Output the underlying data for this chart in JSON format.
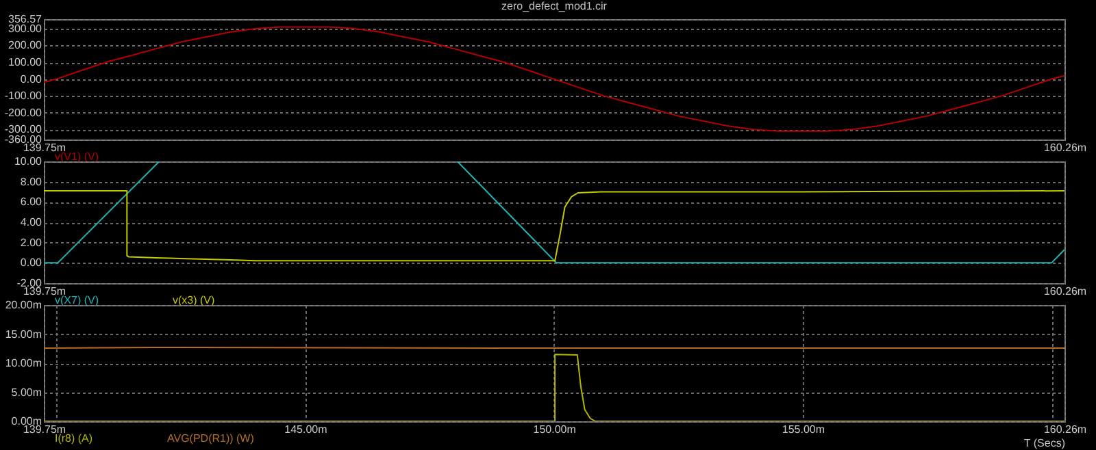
{
  "chart_data": [
    {
      "type": "line",
      "title": "zero_defect_mod1.cir",
      "legend": "bottom left",
      "grid": true,
      "xlim": [
        139.75,
        160.26
      ],
      "xticks": [
        {
          "value": 139.75,
          "label": "139.75m"
        },
        {
          "value": 160.26,
          "label": "160.26m"
        }
      ],
      "ylim": [
        -360,
        356.57
      ],
      "yticks": [
        {
          "value": -360,
          "label": "-360.00"
        },
        {
          "value": -300,
          "label": "-300.00"
        },
        {
          "value": -200,
          "label": "-200.00"
        },
        {
          "value": -100,
          "label": "-100.00"
        },
        {
          "value": 0,
          "label": "0.00"
        },
        {
          "value": 100,
          "label": "100.00"
        },
        {
          "value": 200,
          "label": "200.00"
        },
        {
          "value": 300,
          "label": "300.00"
        },
        {
          "value": 356.57,
          "label": "356.57"
        }
      ],
      "series": [
        {
          "name": "v(V1) (V)",
          "color": "#b40000",
          "x": [
            139.75,
            140,
            140.5,
            141,
            141.5,
            142,
            142.5,
            143,
            143.5,
            144,
            144.5,
            145,
            145.5,
            146,
            146.5,
            147,
            147.5,
            148,
            148.5,
            149,
            149.5,
            150,
            150.5,
            151,
            151.5,
            152,
            152.5,
            153,
            153.5,
            154,
            154.5,
            155,
            155.5,
            156,
            156.5,
            157,
            157.5,
            158,
            158.5,
            159,
            159.5,
            160,
            160.26
          ],
          "values": [
            -20,
            0,
            50,
            100,
            140,
            180,
            220,
            250,
            280,
            300,
            310,
            310,
            310,
            300,
            280,
            250,
            220,
            180,
            140,
            100,
            50,
            0,
            -50,
            -100,
            -140,
            -180,
            -220,
            -250,
            -280,
            -300,
            -310,
            -310,
            -310,
            -300,
            -280,
            -250,
            -220,
            -180,
            -140,
            -100,
            -50,
            0,
            20
          ]
        }
      ]
    },
    {
      "type": "line",
      "legend": "bottom left",
      "grid": true,
      "xlim": [
        139.75,
        160.26
      ],
      "xticks": [
        {
          "value": 139.75,
          "label": "139.75m"
        },
        {
          "value": 160.26,
          "label": "160.26m"
        }
      ],
      "ylim": [
        -2,
        10
      ],
      "yticks": [
        {
          "value": -2,
          "label": "-2.00"
        },
        {
          "value": 0,
          "label": "0.00"
        },
        {
          "value": 2,
          "label": "2.00"
        },
        {
          "value": 4,
          "label": "4.00"
        },
        {
          "value": 6,
          "label": "6.00"
        },
        {
          "value": 8,
          "label": "8.00"
        },
        {
          "value": 10,
          "label": "10.00"
        }
      ],
      "series": [
        {
          "name": "v(X7) (V)",
          "color": "#20b4b4",
          "x": [
            139.75,
            140.03,
            142.07,
            145,
            148.06,
            150.05,
            160,
            160.26
          ],
          "values": [
            0,
            0,
            10,
            null,
            10,
            0,
            0,
            1.3
          ]
        },
        {
          "name": "v(x3) (V)",
          "color": "#c8c800",
          "x": [
            139.75,
            141.42,
            141.42,
            141.45,
            142,
            143.5,
            144,
            150.02,
            150.13,
            150.22,
            150.35,
            150.48,
            150.94,
            155,
            160.26
          ],
          "values": [
            7.1,
            7.1,
            0.7,
            0.6,
            0.5,
            0.3,
            0.2,
            0.2,
            3,
            5.5,
            6.5,
            6.9,
            7,
            7,
            7.1
          ]
        }
      ]
    },
    {
      "type": "line",
      "legend": "bottom left",
      "grid": true,
      "xlabel": "T (Secs)",
      "xlim": [
        139.75,
        160.26
      ],
      "xticks": [
        {
          "value": 139.75,
          "label": "139.75m"
        },
        {
          "value": 140,
          "label": null
        },
        {
          "value": 145,
          "label": "145.00m"
        },
        {
          "value": 150,
          "label": "150.00m"
        },
        {
          "value": 155,
          "label": "155.00m"
        },
        {
          "value": 160,
          "label": null
        },
        {
          "value": 160.26,
          "label": "160.26m"
        }
      ],
      "ylim": [
        0,
        20
      ],
      "yticks": [
        {
          "value": 0,
          "label": "0.00m"
        },
        {
          "value": 5,
          "label": "5.00m"
        },
        {
          "value": 10,
          "label": "10.00m"
        },
        {
          "value": 15,
          "label": "15.00m"
        },
        {
          "value": 20,
          "label": "20.00m"
        }
      ],
      "series": [
        {
          "name": "I(r8) (A)",
          "color": "#b4b400",
          "x": [
            139.75,
            150.02,
            150.02,
            150.47,
            150.54,
            150.62,
            150.73,
            150.83,
            160.26
          ],
          "values": [
            0,
            0,
            11.5,
            11.4,
            6,
            2,
            0.5,
            0,
            0
          ]
        },
        {
          "name": "AVG(PD(R1)) (W)",
          "color": "#b46e28",
          "x": [
            139.75,
            142,
            149,
            160.26
          ],
          "values": [
            12.6,
            12.7,
            12.6,
            12.6
          ]
        }
      ]
    }
  ]
}
